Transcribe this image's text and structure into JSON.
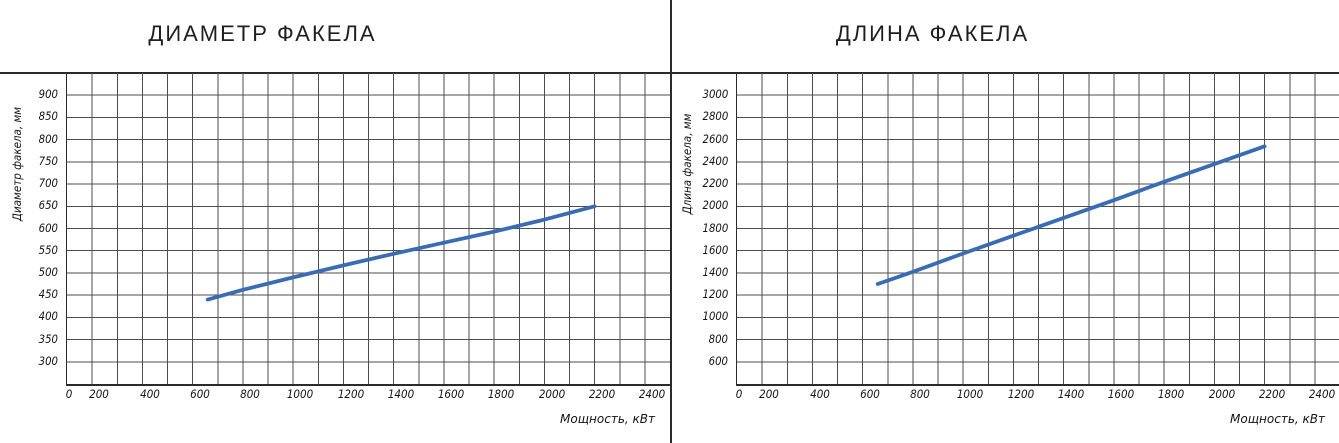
{
  "chart_data": [
    {
      "type": "line",
      "title": "ДИАМЕТР ФАКЕЛА",
      "ylabel": "Диаметр факела, мм",
      "xlabel": "Мощность, кВт",
      "x_ticks": [
        0,
        200,
        400,
        600,
        800,
        1000,
        1200,
        1400,
        1600,
        1800,
        2000,
        2200,
        2400
      ],
      "y_ticks": [
        900,
        850,
        800,
        750,
        700,
        650,
        600,
        550,
        500,
        450,
        400,
        350,
        300
      ],
      "xlim": [
        0,
        2400
      ],
      "ylim": [
        250,
        950
      ],
      "grid_x_step": 100,
      "grid_y_step": 50,
      "grid": true,
      "legend": "none",
      "line_color": "#3a6cb4",
      "series": [
        {
          "name": "Диаметр факела, мм",
          "points": [
            [
              560,
              440
            ],
            [
              700,
              462
            ],
            [
              900,
              490
            ],
            [
              1100,
              517
            ],
            [
              1300,
              543
            ],
            [
              1500,
              568
            ],
            [
              1700,
              593
            ],
            [
              1900,
              620
            ],
            [
              2100,
              650
            ]
          ]
        }
      ]
    },
    {
      "type": "line",
      "title": "ДЛИНА ФАКЕЛА",
      "ylabel": "Длина факела, мм",
      "xlabel": "Мощность, кВт",
      "x_ticks": [
        0,
        200,
        400,
        600,
        800,
        1000,
        1200,
        1400,
        1600,
        1800,
        2000,
        2200,
        2400
      ],
      "y_ticks": [
        3000,
        2800,
        2600,
        2400,
        2200,
        2000,
        1800,
        1600,
        1400,
        1200,
        1000,
        800,
        600
      ],
      "xlim": [
        0,
        2400
      ],
      "ylim": [
        400,
        3200
      ],
      "grid_x_step": 100,
      "grid_y_step": 200,
      "grid": true,
      "legend": "none",
      "line_color": "#3a6cb4",
      "series": [
        {
          "name": "Длина факела, мм",
          "points": [
            [
              560,
              1300
            ],
            [
              700,
              1410
            ],
            [
              900,
              1575
            ],
            [
              1100,
              1735
            ],
            [
              1300,
              1895
            ],
            [
              1500,
              2055
            ],
            [
              1700,
              2220
            ],
            [
              1900,
              2380
            ],
            [
              2100,
              2540
            ]
          ]
        }
      ]
    }
  ],
  "colors": {
    "line": "#3a6cb4",
    "grid": "#4d4d4d",
    "frame": "#2b2b2b",
    "text": "#141414",
    "background": "#ffffff"
  }
}
